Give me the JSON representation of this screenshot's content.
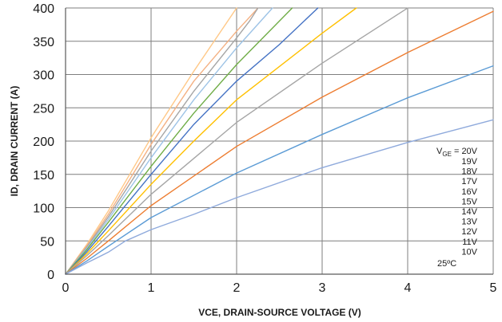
{
  "chart_data": {
    "type": "line",
    "xlabel": "VCE, DRAIN-SOURCE VOLTAGE (V)",
    "ylabel": "ID, DRAIN CURRENT (A)",
    "xlim": [
      0,
      5
    ],
    "ylim": [
      0,
      400
    ],
    "x_ticks": [
      "0",
      "1",
      "2",
      "3",
      "4",
      "5"
    ],
    "y_ticks": [
      "0",
      "50",
      "100",
      "150",
      "200",
      "250",
      "300",
      "350",
      "400"
    ],
    "grid": true,
    "legend": {
      "vge_label": "V",
      "vge_sub": "GE",
      "vge_first": " = 20V",
      "entries": [
        "19V",
        "18V",
        "17V",
        "16V",
        "15V",
        "14V",
        "13V",
        "12V",
        "11V",
        "10V"
      ],
      "temperature": "25ºC"
    },
    "series": [
      {
        "color": "#ffc887",
        "values": [
          [
            0,
            0
          ],
          [
            0.25,
            45
          ],
          [
            0.5,
            95
          ],
          [
            1,
            205
          ],
          [
            1.5,
            305
          ],
          [
            2,
            400
          ]
        ]
      },
      {
        "color": "#f4b183",
        "values": [
          [
            0,
            0
          ],
          [
            0.25,
            43
          ],
          [
            0.5,
            90
          ],
          [
            1,
            195
          ],
          [
            1.5,
            290
          ],
          [
            2,
            365
          ],
          [
            2.25,
            400
          ]
        ]
      },
      {
        "color": "#a5a5a5",
        "values": [
          [
            0,
            0
          ],
          [
            0.25,
            41
          ],
          [
            0.5,
            86
          ],
          [
            1,
            185
          ],
          [
            1.5,
            275
          ],
          [
            2,
            355
          ],
          [
            2.15,
            380
          ],
          [
            2.25,
            400
          ]
        ]
      },
      {
        "color": "#9dc3e6",
        "values": [
          [
            0,
            0
          ],
          [
            0.25,
            39
          ],
          [
            0.5,
            82
          ],
          [
            1,
            175
          ],
          [
            1.5,
            262
          ],
          [
            2,
            340
          ],
          [
            2.42,
            400
          ]
        ]
      },
      {
        "color": "#70ad47",
        "values": [
          [
            0,
            0
          ],
          [
            0.25,
            37
          ],
          [
            0.5,
            78
          ],
          [
            1,
            162
          ],
          [
            1.5,
            242
          ],
          [
            2,
            315
          ],
          [
            2.65,
            400
          ]
        ]
      },
      {
        "color": "#4472c4",
        "values": [
          [
            0,
            0
          ],
          [
            0.25,
            34
          ],
          [
            0.5,
            72
          ],
          [
            1,
            150
          ],
          [
            1.5,
            225
          ],
          [
            2,
            290
          ],
          [
            2.5,
            345
          ],
          [
            2.95,
            400
          ]
        ]
      },
      {
        "color": "#ffc000",
        "values": [
          [
            0,
            0
          ],
          [
            0.25,
            31
          ],
          [
            0.5,
            65
          ],
          [
            1,
            135
          ],
          [
            1.5,
            200
          ],
          [
            2,
            262
          ],
          [
            3,
            362
          ],
          [
            3.4,
            400
          ]
        ]
      },
      {
        "color": "#a5a5a5",
        "values": [
          [
            0,
            0
          ],
          [
            0.25,
            28
          ],
          [
            0.5,
            58
          ],
          [
            1,
            120
          ],
          [
            2,
            228
          ],
          [
            3,
            317
          ],
          [
            4,
            400
          ]
        ]
      },
      {
        "color": "#ed7d31",
        "values": [
          [
            0,
            0
          ],
          [
            0.25,
            24
          ],
          [
            0.5,
            50
          ],
          [
            1,
            103
          ],
          [
            2,
            192
          ],
          [
            3,
            266
          ],
          [
            4,
            333
          ],
          [
            5,
            395
          ]
        ]
      },
      {
        "color": "#5b9bd5",
        "values": [
          [
            0,
            0
          ],
          [
            0.25,
            20
          ],
          [
            0.5,
            42
          ],
          [
            1,
            85
          ],
          [
            2,
            152
          ],
          [
            3,
            210
          ],
          [
            4,
            265
          ],
          [
            5,
            313
          ]
        ]
      },
      {
        "color": "#8faadc",
        "values": [
          [
            0,
            0
          ],
          [
            0.25,
            17
          ],
          [
            0.5,
            33
          ],
          [
            0.7,
            50
          ],
          [
            1,
            67
          ],
          [
            1.5,
            90
          ],
          [
            2,
            115
          ],
          [
            3,
            160
          ],
          [
            4,
            198
          ],
          [
            5,
            232
          ]
        ]
      }
    ]
  }
}
